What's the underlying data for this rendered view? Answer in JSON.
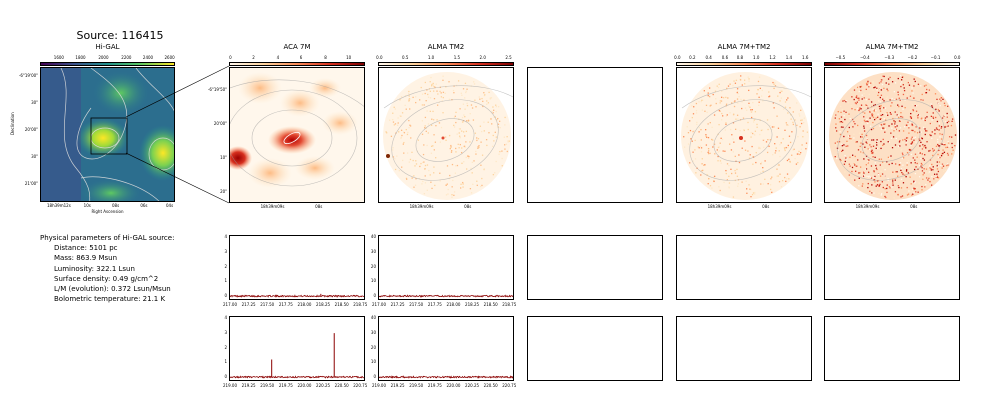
{
  "source_title": "Source: 116415",
  "panels": {
    "higal": {
      "title": "Hi-GAL",
      "cbar_ticks": [
        "1600",
        "1800",
        "2000",
        "2200",
        "2400",
        "2600"
      ],
      "yticks": [
        "-6°19'00\"",
        "30\"",
        "20'00\"",
        "30\"",
        "21'00\""
      ],
      "xticks": [
        "18h39m12s",
        "10s",
        "08s",
        "06s",
        "04s"
      ],
      "xlabel": "Right Ascension",
      "ylabel": "Declination"
    },
    "aca7m": {
      "title": "ACA 7M",
      "cbar_ticks": [
        "0",
        "2",
        "4",
        "6",
        "8",
        "10"
      ],
      "yticks": [
        "-6°19'50\"",
        "20'00\"",
        "10\"",
        "20\""
      ],
      "xticks": [
        "18h39m09s",
        "08s"
      ]
    },
    "almatm2": {
      "title": "ALMA TM2",
      "cbar_ticks": [
        "0.0",
        "0.5",
        "1.0",
        "1.5",
        "2.0",
        "2.5"
      ],
      "xticks": [
        "18h39m09s",
        "08s"
      ]
    },
    "alma7mtm2": {
      "title": "ALMA 7M+TM2",
      "cbar_ticks": [
        "0.0",
        "0.2",
        "0.4",
        "0.6",
        "0.8",
        "1.0",
        "1.2",
        "1.4",
        "1.6"
      ],
      "xticks": [
        "18h39m09s",
        "08s"
      ]
    },
    "alma7mtm2_res": {
      "title": "ALMA 7M+TM2",
      "cbar_ticks": [
        "−0.5",
        "−0.4",
        "−0.3",
        "−0.2",
        "−0.1",
        "0.0"
      ],
      "xticks": [
        "18h39m09s",
        "08s"
      ]
    }
  },
  "physical_parameters": {
    "header": "Physical parameters of Hi-GAL source:",
    "distance": "Distance: 5101 pc",
    "mass": "Mass: 863.9 Msun",
    "luminosity": "Luminosity: 322.1 Lsun",
    "surface_density": "Surface density: 0.49 g/cm^2",
    "lm": "L/M (evolution): 0.372 Lsun/Msun",
    "tbol": "Bolometric temperature: 21.1 K"
  },
  "chart_data": [
    {
      "type": "line",
      "panel": "spectrum-aca-row1",
      "x_ticks": [
        "217.00",
        "217.25",
        "217.50",
        "217.75",
        "218.00",
        "218.25",
        "218.50",
        "218.75"
      ],
      "xlim": [
        217.0,
        218.8
      ],
      "y_ticks": [
        "0",
        "1",
        "2",
        "3",
        "4"
      ],
      "ylim": [
        -0.2,
        4.1
      ],
      "baseline": 0,
      "peaks": [
        {
          "x": 218.22,
          "y": 0.15
        }
      ],
      "color": "#8b0000"
    },
    {
      "type": "line",
      "panel": "spectrum-tm2-row1",
      "x_ticks": [
        "217.00",
        "217.25",
        "217.50",
        "217.75",
        "218.00",
        "218.25",
        "218.50",
        "218.75"
      ],
      "xlim": [
        217.0,
        218.8
      ],
      "y_ticks": [
        "0",
        "10",
        "20",
        "30",
        "40"
      ],
      "ylim": [
        -2,
        41
      ],
      "baseline": 0,
      "peaks": [],
      "color": "#8b0000"
    },
    {
      "type": "line",
      "panel": "spectrum-aca-row2",
      "x_ticks": [
        "219.00",
        "219.25",
        "219.50",
        "219.75",
        "220.00",
        "220.25",
        "220.50",
        "220.75"
      ],
      "xlim": [
        219.0,
        220.8
      ],
      "y_ticks": [
        "0",
        "1",
        "2",
        "3",
        "4"
      ],
      "ylim": [
        -0.2,
        4.1
      ],
      "baseline": 0,
      "peaks": [
        {
          "x": 219.56,
          "y": 1.2
        },
        {
          "x": 220.4,
          "y": 3.0
        }
      ],
      "color": "#8b0000"
    },
    {
      "type": "line",
      "panel": "spectrum-tm2-row2",
      "x_ticks": [
        "219.00",
        "219.25",
        "219.50",
        "219.75",
        "220.00",
        "220.25",
        "220.50",
        "220.75"
      ],
      "xlim": [
        219.0,
        220.8
      ],
      "y_ticks": [
        "0",
        "10",
        "20",
        "30",
        "40"
      ],
      "ylim": [
        -2,
        41
      ],
      "baseline": 0,
      "peaks": [],
      "color": "#8b0000"
    }
  ]
}
